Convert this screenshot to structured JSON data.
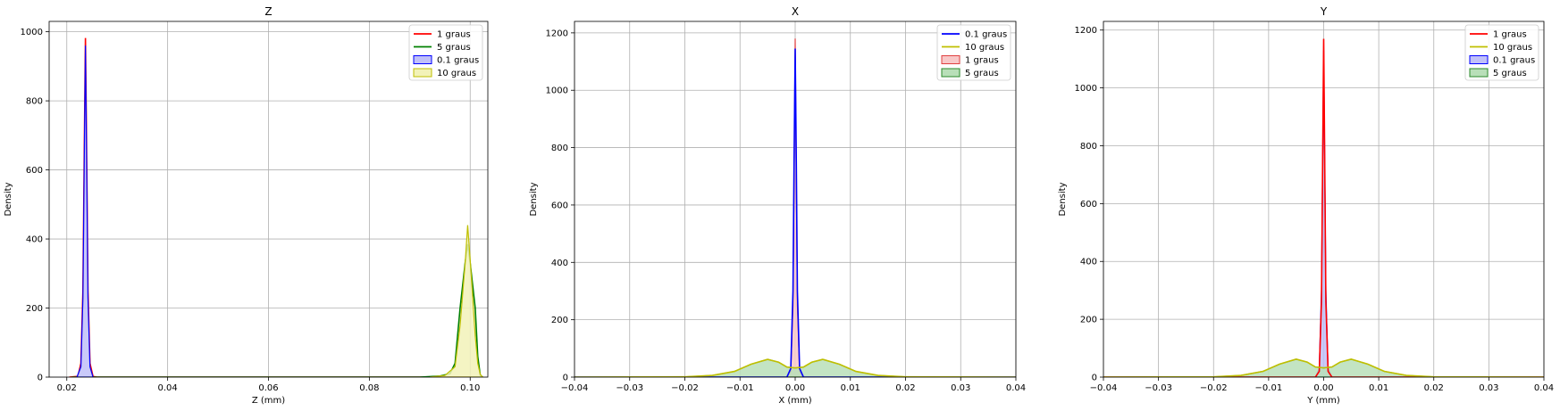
{
  "chart_data": [
    {
      "type": "area",
      "title": "Z",
      "xlabel": "Z (mm)",
      "ylabel": "Density",
      "xlim": [
        0.0165,
        0.1035
      ],
      "ylim": [
        0,
        1030
      ],
      "xticks": [
        0.02,
        0.04,
        0.06,
        0.08,
        0.1
      ],
      "xtick_labels": [
        "0.02",
        "0.04",
        "0.06",
        "0.08",
        "0.10"
      ],
      "yticks": [
        0,
        200,
        400,
        600,
        800,
        1000
      ],
      "ytick_labels": [
        "0",
        "200",
        "400",
        "600",
        "800",
        "1000"
      ],
      "grid": true,
      "legend": "top-right",
      "series": [
        {
          "name": "1 graus",
          "style": "line",
          "color": "#ff0000",
          "points": [
            [
              0.0205,
              0
            ],
            [
              0.0222,
              2
            ],
            [
              0.0228,
              40
            ],
            [
              0.0232,
              250
            ],
            [
              0.0235,
              700
            ],
            [
              0.0237,
              982
            ],
            [
              0.0239,
              700
            ],
            [
              0.0242,
              250
            ],
            [
              0.0246,
              40
            ],
            [
              0.0252,
              2
            ],
            [
              0.026,
              0
            ],
            [
              0.1,
              0
            ]
          ]
        },
        {
          "name": "5 graus",
          "style": "line",
          "color": "#008000",
          "points": [
            [
              0.021,
              0
            ],
            [
              0.09,
              0
            ],
            [
              0.094,
              3
            ],
            [
              0.096,
              10
            ],
            [
              0.097,
              40
            ],
            [
              0.098,
              200
            ],
            [
              0.099,
              330
            ],
            [
              0.0995,
              385
            ],
            [
              0.1,
              330
            ],
            [
              0.101,
              200
            ],
            [
              0.1015,
              60
            ],
            [
              0.102,
              5
            ],
            [
              0.1025,
              0
            ]
          ]
        },
        {
          "name": "0.1 graus",
          "style": "fill",
          "color": "#0000ff",
          "fill": "#c0c0f8",
          "points": [
            [
              0.022,
              0
            ],
            [
              0.0228,
              30
            ],
            [
              0.0232,
              230
            ],
            [
              0.0235,
              680
            ],
            [
              0.0237,
              960
            ],
            [
              0.0239,
              680
            ],
            [
              0.0242,
              230
            ],
            [
              0.0246,
              30
            ],
            [
              0.0252,
              0
            ]
          ]
        },
        {
          "name": "10 graus",
          "style": "fill",
          "color": "#bfbf00",
          "fill": "#f2f2b8",
          "points": [
            [
              0.092,
              0
            ],
            [
              0.095,
              5
            ],
            [
              0.097,
              30
            ],
            [
              0.098,
              150
            ],
            [
              0.099,
              330
            ],
            [
              0.0995,
              440
            ],
            [
              0.1,
              340
            ],
            [
              0.101,
              120
            ],
            [
              0.1015,
              40
            ],
            [
              0.102,
              8
            ],
            [
              0.1025,
              0
            ]
          ]
        }
      ]
    },
    {
      "type": "area",
      "title": "X",
      "xlabel": "X (mm)",
      "ylabel": "Density",
      "xlim": [
        -0.04,
        0.04
      ],
      "ylim": [
        0,
        1240
      ],
      "xticks": [
        -0.04,
        -0.03,
        -0.02,
        -0.01,
        0.0,
        0.01,
        0.02,
        0.03,
        0.04
      ],
      "xtick_labels": [
        "−0.04",
        "−0.03",
        "−0.02",
        "−0.01",
        "0.00",
        "0.01",
        "0.02",
        "0.03",
        "0.04"
      ],
      "yticks": [
        0,
        200,
        400,
        600,
        800,
        1000,
        1200
      ],
      "ytick_labels": [
        "0",
        "200",
        "400",
        "600",
        "800",
        "1000",
        "1200"
      ],
      "grid": true,
      "legend": "top-right",
      "series": [
        {
          "name": "1 graus",
          "style": "fill",
          "color": "#e04040",
          "fill": "#f8c8c8",
          "points": [
            [
              -0.0015,
              0
            ],
            [
              -0.0008,
              20
            ],
            [
              -0.0004,
              250
            ],
            [
              -0.0002,
              700
            ],
            [
              0,
              1180
            ],
            [
              0.0002,
              700
            ],
            [
              0.0004,
              250
            ],
            [
              0.0008,
              20
            ],
            [
              0.0015,
              0
            ]
          ]
        },
        {
          "name": "5 graus",
          "style": "fill",
          "color": "#2a8a2a",
          "fill": "#b8dfb8",
          "points": [
            [
              -0.04,
              0
            ],
            [
              -0.02,
              1
            ],
            [
              -0.015,
              6
            ],
            [
              -0.011,
              20
            ],
            [
              -0.008,
              45
            ],
            [
              -0.005,
              62
            ],
            [
              -0.003,
              52
            ],
            [
              -0.0015,
              35
            ],
            [
              0,
              32
            ],
            [
              0.0015,
              35
            ],
            [
              0.003,
              52
            ],
            [
              0.005,
              62
            ],
            [
              0.008,
              45
            ],
            [
              0.011,
              20
            ],
            [
              0.015,
              6
            ],
            [
              0.02,
              1
            ],
            [
              0.04,
              0
            ]
          ]
        },
        {
          "name": "0.1 graus",
          "style": "line",
          "color": "#0000ff",
          "points": [
            [
              -0.04,
              0
            ],
            [
              -0.0015,
              0
            ],
            [
              -0.0008,
              30
            ],
            [
              -0.0004,
              300
            ],
            [
              -0.0002,
              750
            ],
            [
              0,
              1145
            ],
            [
              0.0002,
              750
            ],
            [
              0.0004,
              300
            ],
            [
              0.0008,
              30
            ],
            [
              0.0015,
              0
            ],
            [
              0.04,
              0
            ]
          ]
        },
        {
          "name": "10 graus",
          "style": "line",
          "color": "#bfbf00",
          "points": [
            [
              -0.04,
              0
            ],
            [
              -0.02,
              1
            ],
            [
              -0.015,
              6
            ],
            [
              -0.011,
              20
            ],
            [
              -0.008,
              45
            ],
            [
              -0.005,
              62
            ],
            [
              -0.003,
              52
            ],
            [
              -0.0015,
              35
            ],
            [
              0,
              32
            ],
            [
              0.0015,
              35
            ],
            [
              0.003,
              52
            ],
            [
              0.005,
              62
            ],
            [
              0.008,
              45
            ],
            [
              0.011,
              20
            ],
            [
              0.015,
              6
            ],
            [
              0.02,
              1
            ],
            [
              0.04,
              0
            ]
          ]
        }
      ]
    },
    {
      "type": "area",
      "title": "Y",
      "xlabel": "Y (mm)",
      "ylabel": "Density",
      "xlim": [
        -0.04,
        0.04
      ],
      "ylim": [
        0,
        1230
      ],
      "xticks": [
        -0.04,
        -0.03,
        -0.02,
        -0.01,
        0.0,
        0.01,
        0.02,
        0.03,
        0.04
      ],
      "xtick_labels": [
        "−0.04",
        "−0.03",
        "−0.02",
        "−0.01",
        "0.00",
        "0.01",
        "0.02",
        "0.03",
        "0.04"
      ],
      "yticks": [
        0,
        200,
        400,
        600,
        800,
        1000,
        1200
      ],
      "ytick_labels": [
        "0",
        "200",
        "400",
        "600",
        "800",
        "1000",
        "1200"
      ],
      "grid": true,
      "legend": "top-right",
      "series": [
        {
          "name": "0.1 graus",
          "style": "fill",
          "color": "#0000ff",
          "fill": "#c0c0f8",
          "points": [
            [
              -0.0015,
              0
            ],
            [
              -0.0008,
              30
            ],
            [
              -0.0004,
              300
            ],
            [
              -0.0002,
              720
            ],
            [
              0,
              1130
            ],
            [
              0.0002,
              720
            ],
            [
              0.0004,
              300
            ],
            [
              0.0008,
              30
            ],
            [
              0.0015,
              0
            ]
          ]
        },
        {
          "name": "5 graus",
          "style": "fill",
          "color": "#2a8a2a",
          "fill": "#b8dfb8",
          "points": [
            [
              -0.04,
              0
            ],
            [
              -0.02,
              1
            ],
            [
              -0.015,
              6
            ],
            [
              -0.011,
              20
            ],
            [
              -0.008,
              45
            ],
            [
              -0.005,
              62
            ],
            [
              -0.003,
              52
            ],
            [
              -0.0015,
              35
            ],
            [
              0,
              32
            ],
            [
              0.0015,
              35
            ],
            [
              0.003,
              52
            ],
            [
              0.005,
              62
            ],
            [
              0.008,
              45
            ],
            [
              0.011,
              20
            ],
            [
              0.015,
              6
            ],
            [
              0.02,
              1
            ],
            [
              0.04,
              0
            ]
          ]
        },
        {
          "name": "1 graus",
          "style": "line",
          "color": "#ff0000",
          "points": [
            [
              -0.04,
              0
            ],
            [
              -0.0015,
              0
            ],
            [
              -0.0008,
              20
            ],
            [
              -0.0004,
              260
            ],
            [
              -0.0002,
              720
            ],
            [
              0,
              1170
            ],
            [
              0.0002,
              720
            ],
            [
              0.0004,
              260
            ],
            [
              0.0008,
              20
            ],
            [
              0.0015,
              0
            ],
            [
              0.04,
              0
            ]
          ]
        },
        {
          "name": "10 graus",
          "style": "line",
          "color": "#bfbf00",
          "points": [
            [
              -0.04,
              0
            ],
            [
              -0.02,
              1
            ],
            [
              -0.015,
              6
            ],
            [
              -0.011,
              20
            ],
            [
              -0.008,
              45
            ],
            [
              -0.005,
              62
            ],
            [
              -0.003,
              52
            ],
            [
              -0.0015,
              35
            ],
            [
              0,
              32
            ],
            [
              0.0015,
              35
            ],
            [
              0.003,
              52
            ],
            [
              0.005,
              62
            ],
            [
              0.008,
              45
            ],
            [
              0.011,
              20
            ],
            [
              0.015,
              6
            ],
            [
              0.02,
              1
            ],
            [
              0.04,
              0
            ]
          ]
        }
      ],
      "legend_entries": [
        {
          "name": "1 graus",
          "style": "line",
          "color": "#ff0000"
        },
        {
          "name": "10 graus",
          "style": "line",
          "color": "#bfbf00"
        },
        {
          "name": "0.1 graus",
          "style": "fill",
          "color": "#0000ff",
          "fill": "#c0c0f8"
        },
        {
          "name": "5 graus",
          "style": "fill",
          "color": "#2a8a2a",
          "fill": "#b8dfb8"
        }
      ]
    }
  ],
  "legends": [
    [
      {
        "name": "1 graus",
        "style": "line",
        "color": "#ff0000"
      },
      {
        "name": "5 graus",
        "style": "line",
        "color": "#008000"
      },
      {
        "name": "0.1 graus",
        "style": "fill",
        "color": "#0000ff",
        "fill": "#c0c0f8"
      },
      {
        "name": "10 graus",
        "style": "fill",
        "color": "#bfbf00",
        "fill": "#f2f2b8"
      }
    ],
    [
      {
        "name": "0.1 graus",
        "style": "line",
        "color": "#0000ff"
      },
      {
        "name": "10 graus",
        "style": "line",
        "color": "#bfbf00"
      },
      {
        "name": "1 graus",
        "style": "fill",
        "color": "#e04040",
        "fill": "#f8c8c8"
      },
      {
        "name": "5 graus",
        "style": "fill",
        "color": "#2a8a2a",
        "fill": "#b8dfb8"
      }
    ],
    [
      {
        "name": "1 graus",
        "style": "line",
        "color": "#ff0000"
      },
      {
        "name": "10 graus",
        "style": "line",
        "color": "#bfbf00"
      },
      {
        "name": "0.1 graus",
        "style": "fill",
        "color": "#0000ff",
        "fill": "#c0c0f8"
      },
      {
        "name": "5 graus",
        "style": "fill",
        "color": "#2a8a2a",
        "fill": "#b8dfb8"
      }
    ]
  ],
  "colors": {
    "grid": "#b0b0b0",
    "axes": "#000000",
    "background": "#ffffff"
  }
}
